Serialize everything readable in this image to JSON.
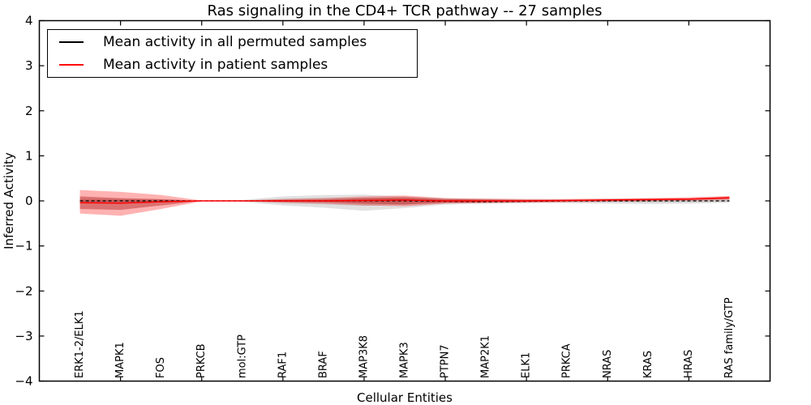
{
  "chart_data": {
    "type": "line",
    "title": "Ras signaling in the CD4+ TCR pathway -- 27 samples",
    "xlabel": "Cellular Entities",
    "ylabel": "Inferred Activity",
    "ylim": [
      -4,
      4
    ],
    "xlim": [
      0,
      18
    ],
    "grid": false,
    "legend_position": "upper left",
    "yticks": [
      -4,
      -3,
      -2,
      -1,
      0,
      1,
      2,
      3,
      4
    ],
    "ytick_labels": [
      "−4",
      "−3",
      "−2",
      "−1",
      "0",
      "1",
      "2",
      "3",
      "4"
    ],
    "xtick_marks": [
      2,
      4,
      6,
      8,
      10,
      12,
      14,
      16
    ],
    "categories": [
      "ERK1-2/ELK1",
      "MAPK1",
      "FOS",
      "PRKCB",
      "mol:GTP",
      "RAF1",
      "BRAF",
      "MAP3K8",
      "MAPK3",
      "PTPN7",
      "MAP2K1",
      "ELK1",
      "PRKCA",
      "NRAS",
      "KRAS",
      "HRAS",
      "RAS family/GTP"
    ],
    "series": [
      {
        "name": "Mean activity in all permuted samples",
        "color": "#000000",
        "style": "dashed",
        "values": [
          0.0,
          0.0,
          0.0,
          0.0,
          0.0,
          0.0,
          0.0,
          0.0,
          0.0,
          -0.01,
          -0.02,
          -0.01,
          0.0,
          0.0,
          0.0,
          0.0,
          0.0
        ]
      },
      {
        "name": "Mean activity in patient samples",
        "color": "#ff0000",
        "style": "solid",
        "values": [
          -0.04,
          -0.05,
          -0.02,
          0.0,
          0.0,
          0.0,
          0.0,
          0.01,
          0.02,
          0.0,
          0.0,
          0.0,
          0.01,
          0.02,
          0.03,
          0.04,
          0.07
        ]
      }
    ],
    "bands": [
      {
        "name": "permuted-outer-band",
        "color": "#aaaaaa",
        "opacity": 0.35,
        "upper": [
          0.04,
          0.04,
          0.03,
          0.01,
          0.02,
          0.1,
          0.13,
          0.14,
          0.1,
          0.06,
          0.05,
          0.04,
          0.04,
          0.05,
          0.06,
          0.05,
          0.04
        ],
        "lower": [
          -0.04,
          -0.05,
          -0.03,
          -0.01,
          -0.02,
          -0.1,
          -0.15,
          -0.22,
          -0.16,
          -0.08,
          -0.06,
          -0.05,
          -0.05,
          -0.06,
          -0.07,
          -0.06,
          -0.04
        ]
      },
      {
        "name": "permuted-inner-band",
        "color": "#aaaaaa",
        "opacity": 0.35,
        "upper": [
          0.02,
          0.02,
          0.015,
          0.005,
          0.01,
          0.05,
          0.07,
          0.07,
          0.05,
          0.03,
          0.025,
          0.02,
          0.02,
          0.025,
          0.03,
          0.025,
          0.02
        ],
        "lower": [
          -0.02,
          -0.025,
          -0.015,
          -0.005,
          -0.01,
          -0.05,
          -0.08,
          -0.11,
          -0.08,
          -0.04,
          -0.03,
          -0.025,
          -0.025,
          -0.03,
          -0.035,
          -0.03,
          -0.02
        ]
      },
      {
        "name": "patient-outer-band",
        "color": "#ff0000",
        "opacity": 0.3,
        "upper": [
          0.24,
          0.2,
          0.13,
          0.01,
          0.01,
          0.04,
          0.06,
          0.1,
          0.12,
          0.06,
          0.05,
          0.04,
          0.04,
          0.05,
          0.06,
          0.08,
          0.11
        ],
        "lower": [
          -0.28,
          -0.33,
          -0.18,
          -0.01,
          -0.01,
          -0.04,
          -0.06,
          -0.1,
          -0.12,
          -0.06,
          -0.05,
          -0.04,
          -0.03,
          -0.02,
          -0.01,
          0.0,
          0.02
        ]
      },
      {
        "name": "patient-inner-band",
        "color": "#b22222",
        "opacity": 0.45,
        "upper": [
          0.1,
          0.06,
          0.04,
          0.0,
          0.0,
          0.02,
          0.03,
          0.06,
          0.08,
          0.04,
          0.03,
          0.02,
          0.02,
          0.03,
          0.04,
          0.05,
          0.09
        ],
        "lower": [
          -0.18,
          -0.2,
          -0.1,
          0.0,
          0.0,
          -0.02,
          -0.03,
          -0.06,
          -0.08,
          -0.04,
          -0.03,
          -0.02,
          -0.01,
          0.0,
          0.01,
          0.02,
          0.04
        ]
      }
    ],
    "legend": {
      "entries": [
        {
          "label": "Mean activity in all permuted samples",
          "color": "#000000"
        },
        {
          "label": "Mean activity in patient samples",
          "color": "#ff0000"
        }
      ]
    }
  }
}
